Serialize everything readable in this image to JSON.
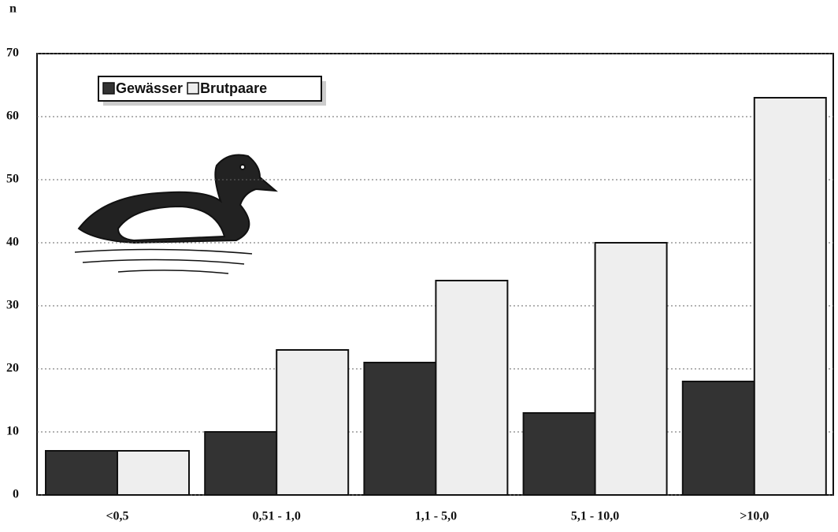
{
  "chart_data": {
    "type": "bar",
    "y_label": "n",
    "categories": [
      "<0,5",
      "0,51 - 1,0",
      "1,1 - 5,0",
      "5,1 - 10,0",
      ">10,0"
    ],
    "series": [
      {
        "name": "Gewässer",
        "color": "#333333",
        "values": [
          7,
          10,
          21,
          13,
          18
        ]
      },
      {
        "name": "Brutpaare",
        "color": "#eeeeee",
        "values": [
          7,
          23,
          34,
          40,
          63
        ]
      }
    ],
    "ylim": [
      0,
      70
    ],
    "yticks": [
      0,
      10,
      20,
      30,
      40,
      50,
      60,
      70
    ],
    "grid": true
  }
}
